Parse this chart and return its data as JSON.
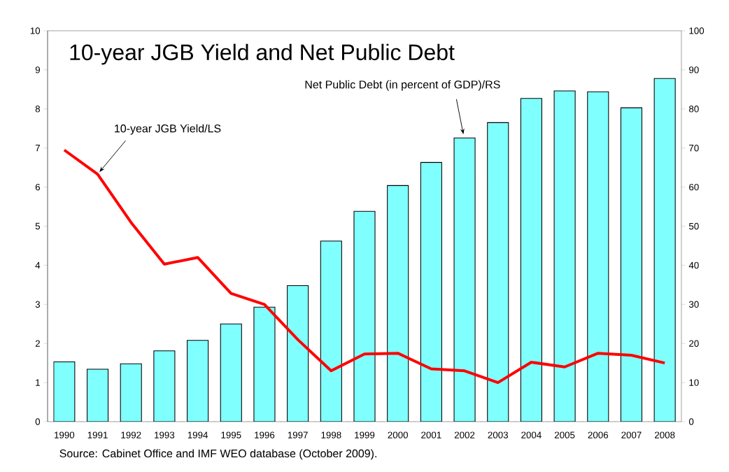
{
  "chart_data": {
    "type": "bar",
    "title": "10-year JGB Yield and Net Public Debt",
    "categories": [
      "1990",
      "1991",
      "1992",
      "1993",
      "1994",
      "1995",
      "1996",
      "1997",
      "1998",
      "1999",
      "2000",
      "2001",
      "2002",
      "2003",
      "2004",
      "2005",
      "2006",
      "2007",
      "2008"
    ],
    "series": [
      {
        "axis": "y2",
        "color": "#80ffff",
        "values": [
          15.3,
          13.4,
          14.8,
          18.1,
          20.8,
          25.0,
          29.3,
          34.8,
          46.2,
          53.8,
          60.4,
          66.3,
          72.6,
          76.5,
          82.7,
          84.6,
          84.4,
          80.3,
          87.8
        ]
      },
      {
        "type": "line",
        "color": "#ff0000",
        "values": [
          6.95,
          6.33,
          5.1,
          4.03,
          4.2,
          3.28,
          3.0,
          2.1,
          1.3,
          1.73,
          1.75,
          1.35,
          1.3,
          1.0,
          1.52,
          1.4,
          1.75,
          1.7,
          1.5
        ]
      }
    ],
    "ylim": [
      0,
      10
    ],
    "yticks": [
      0,
      1,
      2,
      3,
      4,
      5,
      6,
      7,
      8,
      9,
      10
    ],
    "y2lim": [
      0,
      100
    ],
    "y2ticks": [
      0,
      10,
      20,
      30,
      40,
      50,
      60,
      70,
      80,
      90,
      100
    ],
    "annotations": [
      {
        "text": "10-year JGB Yield/LS",
        "x": "1991",
        "y": 6.33
      },
      "Net Public Debt (in percent of GDP)/RS",
      "Source: Cabinet Office and IMF WEO database (October 2009)."
    ]
  }
}
